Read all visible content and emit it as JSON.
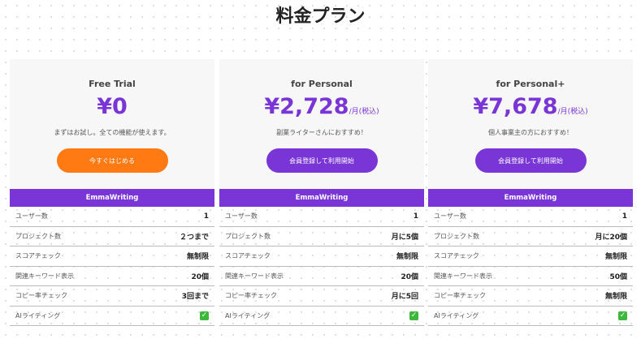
{
  "title": "料金プラン",
  "colors": {
    "accent": "#7a35d6",
    "trial_button": "#ff7a12"
  },
  "features": [
    "ユーザー数",
    "プロジェクト数",
    "スコアチェック",
    "関連キーワード表示",
    "コピー率チェック",
    "AIライティング"
  ],
  "plans": [
    {
      "name": "Free Trial",
      "price": "¥0",
      "unit": "",
      "desc": "まずはお試し。全ての機能が使えます。",
      "button": "今すぐはじめる",
      "header": "EmmaWriting",
      "values": [
        "1",
        "２つまで",
        "無制限",
        "20個",
        "3回まで",
        "check-icon"
      ]
    },
    {
      "name": "for Personal",
      "price": "¥2,728",
      "unit": "/月(税込)",
      "desc": "副業ライターさんにおすすめ！",
      "button": "会員登録して利用開始",
      "header": "EmmaWriting",
      "values": [
        "1",
        "月に5個",
        "無制限",
        "20個",
        "月に5回",
        "check-icon"
      ]
    },
    {
      "name": "for Personal+",
      "price": "¥7,678",
      "unit": "/月(税込)",
      "desc": "個人事業主の方におすすめ！",
      "button": "会員登録して利用開始",
      "header": "EmmaWriting",
      "values": [
        "1",
        "月に20個",
        "無制限",
        "50個",
        "無制限",
        "check-icon"
      ]
    }
  ]
}
